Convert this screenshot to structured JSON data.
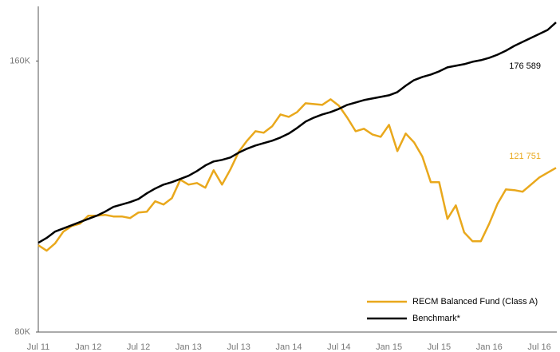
{
  "chart_data": {
    "type": "line",
    "log_scale": true,
    "categories": [
      "Jul 11",
      null,
      null,
      null,
      null,
      null,
      "Jan 12",
      null,
      null,
      null,
      null,
      null,
      "Jul 12",
      null,
      null,
      null,
      null,
      null,
      "Jan 13",
      null,
      null,
      null,
      null,
      null,
      "Jul 13",
      null,
      null,
      null,
      null,
      null,
      "Jan 14",
      null,
      null,
      null,
      null,
      null,
      "Jul 14",
      null,
      null,
      null,
      null,
      null,
      "Jan 15",
      null,
      null,
      null,
      null,
      null,
      "Jul 15",
      null,
      null,
      null,
      null,
      null,
      "Jan 16",
      null,
      null,
      null,
      null,
      null,
      "Jul 16",
      null,
      null
    ],
    "ylim": [
      80000,
      184000
    ],
    "yticks": [
      {
        "value": 80000,
        "label": "80K"
      },
      {
        "value": 160000,
        "label": "160K"
      }
    ],
    "legend": "bottom-right",
    "series": [
      {
        "name": "RECM Balanced Fund (Class A)",
        "color": "#e9a81c",
        "end_label": "121 751",
        "values": [
          99900,
          98490,
          100320,
          103430,
          104910,
          105560,
          107730,
          107730,
          107960,
          107520,
          107520,
          107070,
          108610,
          108830,
          111760,
          110850,
          112680,
          118090,
          116650,
          117120,
          115710,
          121000,
          116650,
          121260,
          126810,
          130500,
          133720,
          133180,
          135370,
          139570,
          138720,
          140430,
          143610,
          143320,
          143030,
          145090,
          142740,
          138440,
          133720,
          134550,
          132630,
          131820,
          135920,
          127080,
          132910,
          129960,
          125270,
          117370,
          117370,
          106860,
          110620,
          103210,
          100930,
          100930,
          105560,
          111080,
          115230,
          115000,
          114530,
          116650,
          118810,
          120270,
          121751
        ]
      },
      {
        "name": "Benchmark*",
        "color": "#000000",
        "end_label": "176 589",
        "values": [
          100520,
          101760,
          103430,
          104280,
          105130,
          105990,
          106860,
          107730,
          108830,
          110180,
          110850,
          111530,
          112440,
          114070,
          115470,
          116650,
          117370,
          118330,
          119300,
          120760,
          122500,
          123760,
          124260,
          125030,
          126560,
          127860,
          128900,
          129700,
          130500,
          131560,
          132910,
          134820,
          137030,
          138440,
          139570,
          140430,
          141580,
          143030,
          143910,
          144790,
          145380,
          145980,
          146580,
          147780,
          150200,
          152370,
          153620,
          154560,
          155820,
          157420,
          158060,
          158710,
          159690,
          160340,
          161320,
          162630,
          164300,
          166330,
          168030,
          169740,
          171480,
          173240,
          176589
        ]
      }
    ]
  }
}
